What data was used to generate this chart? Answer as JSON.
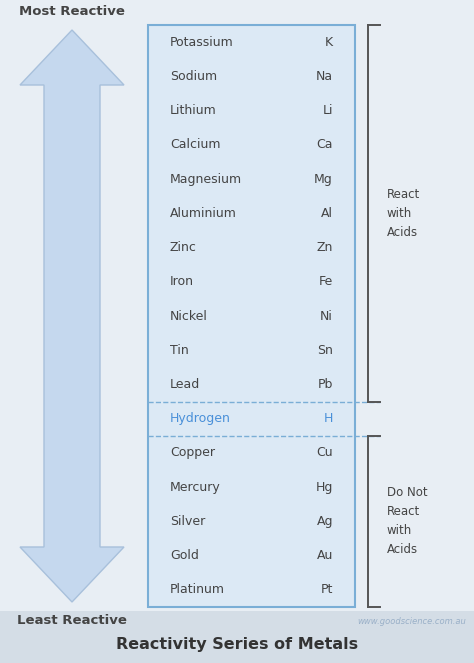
{
  "bg_color": "#e8eef4",
  "footer_color": "#d4dde6",
  "title": "Reactivity Series of Metals",
  "title_fontsize": 11.5,
  "title_color": "#333333",
  "website": "www.goodscience.com.au",
  "website_color": "#9ab0c8",
  "elements": [
    {
      "name": "Potassium",
      "symbol": "K",
      "highlight": false
    },
    {
      "name": "Sodium",
      "symbol": "Na",
      "highlight": false
    },
    {
      "name": "Lithium",
      "symbol": "Li",
      "highlight": false
    },
    {
      "name": "Calcium",
      "symbol": "Ca",
      "highlight": false
    },
    {
      "name": "Magnesium",
      "symbol": "Mg",
      "highlight": false
    },
    {
      "name": "Aluminium",
      "symbol": "Al",
      "highlight": false
    },
    {
      "name": "Zinc",
      "symbol": "Zn",
      "highlight": false
    },
    {
      "name": "Iron",
      "symbol": "Fe",
      "highlight": false
    },
    {
      "name": "Nickel",
      "symbol": "Ni",
      "highlight": false
    },
    {
      "name": "Tin",
      "symbol": "Sn",
      "highlight": false
    },
    {
      "name": "Lead",
      "symbol": "Pb",
      "highlight": false
    },
    {
      "name": "Hydrogen",
      "symbol": "H",
      "highlight": true
    },
    {
      "name": "Copper",
      "symbol": "Cu",
      "highlight": false
    },
    {
      "name": "Mercury",
      "symbol": "Hg",
      "highlight": false
    },
    {
      "name": "Silver",
      "symbol": "Ag",
      "highlight": false
    },
    {
      "name": "Gold",
      "symbol": "Au",
      "highlight": false
    },
    {
      "name": "Platinum",
      "symbol": "Pt",
      "highlight": false
    }
  ],
  "element_text_color": "#444444",
  "highlight_color": "#4a90d9",
  "table_border_color": "#7aaed6",
  "table_fill_color": "#dce9f5",
  "dashed_color": "#7aaed6",
  "arrow_fill_color": "#c5d8ee",
  "arrow_edge_color": "#a8c0db",
  "react_text": "React\nwith\nAcids",
  "noreact_text": "Do Not\nReact\nwith\nAcids",
  "bracket_text_color": "#444444",
  "bracket_color": "#555555",
  "most_reactive_label": "Most Reactive",
  "least_reactive_label": "Least Reactive",
  "side_label_color": "#444444",
  "side_label_fontsize": 9.5,
  "elem_fontsize": 9.0
}
